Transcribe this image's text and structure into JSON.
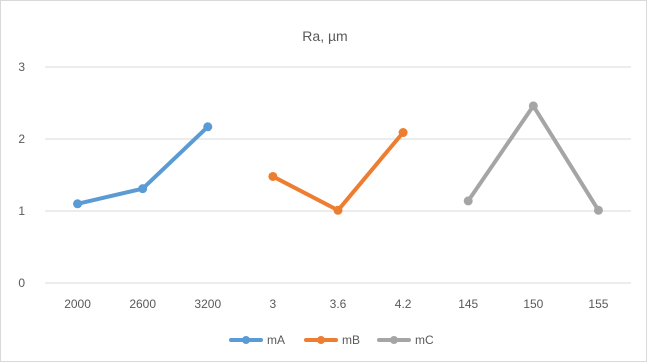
{
  "chart_data": {
    "type": "line",
    "title": "Ra, µm",
    "xlabel": "",
    "ylabel": "",
    "ylim": [
      0,
      3
    ],
    "y_ticks": [
      "0",
      "1",
      "2",
      "3"
    ],
    "categories": [
      "2000",
      "2600",
      "3200",
      "3",
      "3.6",
      "4.2",
      "145",
      "150",
      "155"
    ],
    "grid": "horizontal",
    "legend_position": "bottom",
    "series": [
      {
        "name": "mA",
        "color": "#5b9bd5",
        "values": [
          1.1,
          1.31,
          2.17,
          null,
          null,
          null,
          null,
          null,
          null
        ]
      },
      {
        "name": "mB",
        "color": "#ed7d31",
        "values": [
          null,
          null,
          null,
          1.48,
          1.01,
          2.09,
          null,
          null,
          null
        ]
      },
      {
        "name": "mC",
        "color": "#a5a5a5",
        "values": [
          null,
          null,
          null,
          null,
          null,
          null,
          1.14,
          2.46,
          1.01
        ]
      }
    ]
  }
}
